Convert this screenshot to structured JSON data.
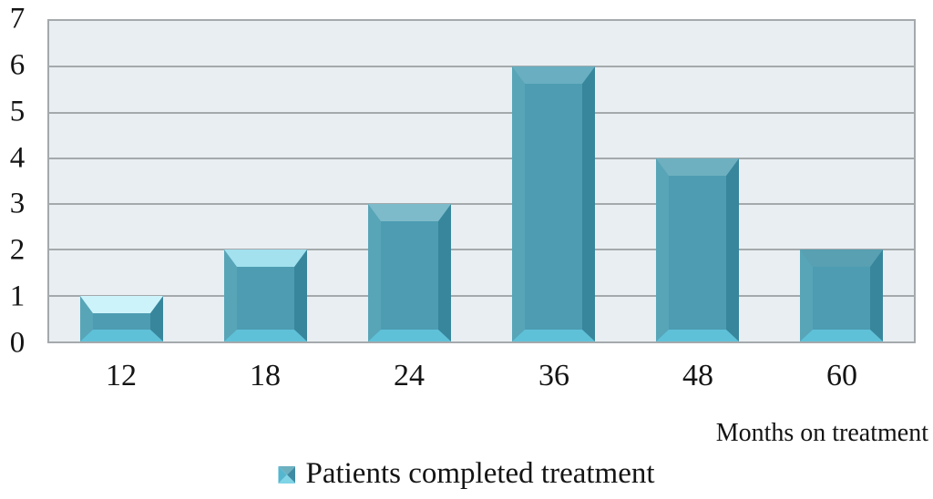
{
  "chart_data": {
    "type": "bar",
    "title": "",
    "categories": [
      "12",
      "18",
      "24",
      "36",
      "48",
      "60"
    ],
    "values": [
      1,
      2,
      3,
      6,
      4,
      2
    ],
    "series": [
      {
        "name": "Patients completed treatment",
        "values": [
          1,
          2,
          3,
          6,
          4,
          2
        ]
      }
    ],
    "xlabel": "Months on treatment",
    "ylabel": "",
    "ylim": [
      0,
      7
    ],
    "yticks": [
      0,
      1,
      2,
      3,
      4,
      5,
      6,
      7
    ],
    "grid": true,
    "legend_position": "bottom",
    "legend_label": "Patients completed treatment",
    "style": "3d-beveled-bars"
  },
  "colors": {
    "plot_bg": "#e9eef2",
    "grid": "#a4a9ac",
    "text": "#141414",
    "bar_center": "#4d9cb2",
    "bar_left_bevel": "#58a5b8",
    "bar_right_bevel": "#37869c",
    "bar_bottom_bevel": "#5fc1d8",
    "bar_top_bevels": [
      "#cdf3fa",
      "#a3e1ef",
      "#7ebbca",
      "#69afc1",
      "#6fb0c0",
      "#58a0b2"
    ],
    "legend_marker_top": "#6db0c0",
    "legend_marker_left": "#55b6cf",
    "legend_marker_right": "#3f8ba3",
    "legend_marker_bottom": "#7fd4e6"
  }
}
